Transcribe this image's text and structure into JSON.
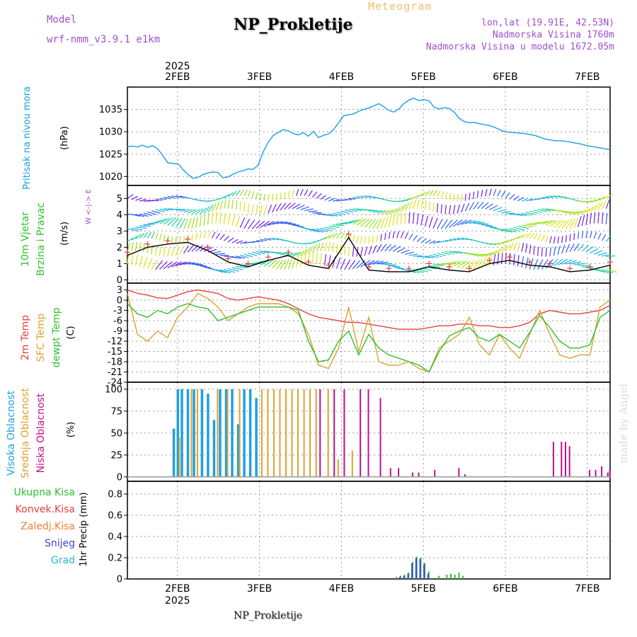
{
  "header": {
    "title": "NP_Prokletije",
    "subtitle": "Meteogram",
    "model_label": "Model",
    "model_value": "wrf-nmm_v3.9.1 e1km",
    "coords": "lon,lat (19.91E, 42.53N)",
    "altitude": "Nadmorska Visina 1760m",
    "model_altitude": "Nadmorska Visina u modelu 1672.05m"
  },
  "footer": {
    "station": "NP_Prokletije",
    "credit": "made by Angel"
  },
  "colors": {
    "pressure": "#1aa0e0",
    "temp": "#e84040",
    "sfc": "#e0a030",
    "dew": "#30c030",
    "high_cloud": "#20a0e0",
    "mid_cloud": "#e0a030",
    "low_cloud": "#c0108a",
    "total_rain": "#30c030",
    "conv_rain": "#e84040",
    "ice_rain": "#f08030",
    "snow": "#4040e0",
    "hail": "#20c0c0"
  },
  "chart_data": [
    {
      "type": "line",
      "panel": "pressure",
      "x_ticks": [
        "2FEB",
        "3FEB",
        "4FEB",
        "5FEB",
        "6FEB",
        "7FEB"
      ],
      "year": "2025",
      "label": "Pritisak na nivou mora",
      "unit": "(hPa)",
      "yticks": [
        1020,
        1025,
        1030,
        1035
      ],
      "ylim": [
        1018,
        1040
      ],
      "x": [
        0,
        0.25,
        0.5,
        0.75,
        1.0,
        1.25,
        1.5,
        1.75,
        2.0,
        2.25,
        2.5,
        2.6,
        2.75,
        3.0,
        3.25,
        3.5,
        3.75,
        4.0,
        4.25,
        4.5,
        4.75,
        5.0,
        5.25,
        5.5,
        5.75,
        6.0,
        6.25,
        6.5,
        6.75,
        7.0,
        7.25,
        7.5,
        7.75,
        8.0,
        8.25,
        8.5,
        8.75,
        9.0,
        9.25,
        9.5,
        9.75,
        10.0,
        10.25,
        10.5,
        10.75,
        11.0,
        11.25,
        11.5,
        11.75,
        12.0,
        12.25,
        12.5,
        12.75,
        13.0,
        13.25,
        13.5,
        13.75,
        14.0,
        14.25,
        14.5,
        14.75,
        15.0,
        15.25,
        15.5,
        15.75,
        16.0,
        16.25,
        16.5,
        16.75,
        17.0,
        17.25,
        17.5,
        17.75,
        18.0,
        18.25,
        18.5,
        18.75,
        19.0,
        19.25,
        19.5,
        19.75,
        20.0,
        20.25,
        20.5,
        20.75,
        21.0,
        21.25,
        21.5,
        21.75,
        22.0,
        22.25,
        22.5,
        22.75,
        23.0,
        23.25,
        23.5,
        23.75,
        24.0
      ],
      "values": [
        1026.7,
        1026.8,
        1026.6,
        1027.0,
        1026.5,
        1026.9,
        1026.2,
        1024.8,
        1023.1,
        1022.9,
        1022.8,
        1022.5,
        1021.6,
        1020.5,
        1019.6,
        1019.8,
        1020.4,
        1020.8,
        1021.0,
        1020.9,
        1019.7,
        1019.9,
        1020.5,
        1021.0,
        1021.3,
        1021.7,
        1021.6,
        1022.5,
        1025.5,
        1027.6,
        1029.2,
        1029.8,
        1030.5,
        1030.2,
        1029.6,
        1029.3,
        1029.8,
        1029.0,
        1030.1,
        1028.7,
        1029.2,
        1029.5,
        1030.5,
        1032.0,
        1033.6,
        1033.8,
        1034.0,
        1034.6,
        1035.0,
        1035.3,
        1035.8,
        1036.3,
        1035.6,
        1034.8,
        1034.4,
        1035.1,
        1036.3,
        1037.1,
        1037.5,
        1037.0,
        1037.2,
        1036.9,
        1035.5,
        1035.1,
        1035.4,
        1035.2,
        1034.4,
        1033.0,
        1032.3,
        1032.0,
        1032.1,
        1031.8,
        1031.6,
        1031.4,
        1031.0,
        1030.5,
        1030.0,
        1029.9,
        1029.8,
        1029.7,
        1029.6,
        1029.4,
        1029.2,
        1028.8,
        1028.4,
        1028.2,
        1028.0,
        1028.0,
        1027.9,
        1027.7,
        1027.5,
        1027.3,
        1027.0,
        1026.8,
        1026.6,
        1026.4,
        1026.2,
        1026.0
      ]
    },
    {
      "type": "line",
      "panel": "wind",
      "label1": "10m Vjetar",
      "label2": "Brzina i Pravac",
      "unit": "(m/s)",
      "compass": "W <-|-> E",
      "yticks": [
        0,
        1,
        2,
        3,
        4,
        5
      ],
      "ylim": [
        -0.2,
        5.8
      ],
      "x": [
        0,
        1,
        2,
        3,
        4,
        5,
        6,
        7,
        8,
        9,
        10,
        11,
        12,
        13,
        14,
        15,
        16,
        17,
        18,
        19,
        20,
        21,
        22,
        23,
        24
      ],
      "values": [
        1.5,
        2.0,
        2.2,
        2.3,
        1.8,
        1.1,
        0.8,
        1.2,
        1.5,
        0.9,
        0.7,
        2.6,
        0.6,
        0.5,
        0.5,
        0.8,
        0.6,
        0.5,
        1.0,
        1.2,
        0.9,
        0.8,
        0.5,
        0.6,
        0.9
      ]
    },
    {
      "type": "line",
      "panel": "temperature",
      "labels": [
        "2m Temp",
        "SFC Temp",
        "dewpt Temp"
      ],
      "unit": "(C)",
      "yticks": [
        3,
        0,
        -3,
        -6,
        -9,
        -12,
        -15,
        -18,
        -21,
        -24
      ],
      "ylim": [
        -24,
        5
      ],
      "x": [
        0,
        0.5,
        1,
        1.5,
        2,
        2.5,
        3,
        3.5,
        4,
        4.5,
        5,
        5.5,
        6,
        6.5,
        7,
        7.5,
        8,
        8.5,
        9,
        9.5,
        10,
        10.5,
        11,
        11.5,
        12,
        12.5,
        13,
        13.5,
        14,
        14.5,
        15,
        15.5,
        16,
        16.5,
        17,
        17.5,
        18,
        18.5,
        19,
        19.5,
        20,
        20.5,
        21,
        21.5,
        22,
        22.5,
        23,
        23.5,
        24
      ],
      "series": [
        {
          "name": "2m Temp",
          "values": [
            3.0,
            2.0,
            1.5,
            0.7,
            0.5,
            1.5,
            2.5,
            3.0,
            2.5,
            2.0,
            0.5,
            0.0,
            0.5,
            1.0,
            0.5,
            0.0,
            -1.0,
            -2.5,
            -4.0,
            -5.0,
            -5.5,
            -6.0,
            -6.5,
            -6.5,
            -7.0,
            -7.5,
            -8.0,
            -8.5,
            -8.5,
            -8.5,
            -8.0,
            -7.5,
            -7.5,
            -7.0,
            -7.0,
            -7.5,
            -7.5,
            -8.0,
            -8.0,
            -7.5,
            -6.5,
            -4.0,
            -3.0,
            -3.5,
            -4.0,
            -4.0,
            -3.5,
            -3.0,
            -1.5
          ]
        },
        {
          "name": "SFC Temp",
          "values": [
            2.0,
            -10.0,
            -12.0,
            -9.0,
            -11.0,
            -5.0,
            -2.0,
            2.0,
            0.5,
            -2.0,
            -6.0,
            -4.0,
            -2.0,
            -1.0,
            -1.0,
            -1.0,
            -2.0,
            -4.0,
            -10.0,
            -19.0,
            -20.0,
            -14.0,
            -2.0,
            -15.0,
            -5.0,
            -18.0,
            -19.0,
            -19.0,
            -18.0,
            -20.0,
            -21.0,
            -14.0,
            -12.0,
            -10.0,
            -5.0,
            -13.0,
            -16.0,
            -10.0,
            -14.0,
            -17.0,
            -10.0,
            -3.0,
            -10.0,
            -16.0,
            -17.0,
            -16.0,
            -16.0,
            -2.0,
            0.0
          ]
        },
        {
          "name": "dewpt Temp",
          "values": [
            -1.0,
            -4.0,
            -5.0,
            -3.0,
            -4.0,
            -2.0,
            -1.0,
            -2.0,
            -2.5,
            -6.0,
            -5.0,
            -4.0,
            -3.0,
            -2.0,
            -2.0,
            -2.0,
            -2.0,
            -3.0,
            -12.0,
            -18.0,
            -17.5,
            -12.0,
            -9.0,
            -16.0,
            -10.0,
            -14.0,
            -16.0,
            -17.0,
            -18.0,
            -19.0,
            -21.0,
            -15.0,
            -10.5,
            -9.0,
            -8.0,
            -11.0,
            -12.0,
            -10.0,
            -12.0,
            -14.0,
            -9.5,
            -4.5,
            -8.0,
            -12.0,
            -14.0,
            -14.0,
            -13.0,
            -5.0,
            -3.0
          ]
        }
      ]
    },
    {
      "type": "bar",
      "panel": "clouds",
      "labels": [
        "Visoka Oblacnost",
        "Srednja Oblacnost",
        "Niska Oblacnost"
      ],
      "unit": "(%)",
      "yticks": [
        0,
        25,
        50,
        75,
        100
      ],
      "ylim": [
        -5,
        108
      ],
      "series": [
        {
          "name": "Visoka Oblacnost",
          "x": [
            2.3,
            2.5,
            2.7,
            3.0,
            3.3,
            3.7,
            4.0,
            4.3,
            4.6,
            4.9,
            5.2,
            5.5,
            5.8,
            6.1,
            6.4
          ],
          "values": [
            55,
            100,
            100,
            100,
            100,
            100,
            95,
            65,
            100,
            100,
            100,
            60,
            100,
            100,
            90
          ]
        },
        {
          "name": "Srednja Oblacnost",
          "x": [
            2.6,
            3.2,
            3.5,
            4.5,
            5.0,
            5.6,
            6.7,
            7.0,
            7.3,
            7.6,
            7.9,
            8.2,
            8.5,
            8.8,
            9.1,
            9.4,
            10.0,
            10.5,
            11.2
          ],
          "values": [
            45,
            100,
            100,
            100,
            100,
            100,
            100,
            100,
            100,
            100,
            100,
            100,
            100,
            100,
            100,
            100,
            100,
            20,
            30
          ]
        },
        {
          "name": "Niska Oblacnost",
          "x": [
            9.6,
            10.3,
            10.8,
            11.6,
            12.0,
            12.6,
            13.1,
            13.5,
            14.2,
            14.5,
            15.3,
            16.5,
            16.8,
            21.2,
            21.6,
            21.8,
            22.0,
            23.0,
            23.3,
            23.6,
            23.9,
            24.0
          ],
          "values": [
            100,
            100,
            100,
            100,
            100,
            90,
            10,
            10,
            5,
            5,
            8,
            10,
            3,
            40,
            40,
            40,
            35,
            8,
            8,
            12,
            5,
            8
          ]
        }
      ]
    },
    {
      "type": "bar",
      "panel": "precipitation",
      "labels": [
        "Ukupna Kisa",
        "Konvek.Kisa",
        "Zaledj.Kisa",
        "Snijeg",
        "Grad"
      ],
      "unit": "1hr Precip (mm)",
      "yticks": [
        0,
        0.2,
        0.4,
        0.6,
        0.8
      ],
      "ylim": [
        0,
        0.92
      ],
      "series": [
        {
          "name": "Ukupna Kisa",
          "x": [
            13.4,
            13.6,
            13.8,
            14.0,
            14.2,
            14.4,
            14.6,
            14.8,
            15.0,
            15.5,
            15.9,
            16.1,
            16.3,
            16.5,
            16.7
          ],
          "values": [
            0.02,
            0.03,
            0.04,
            0.06,
            0.16,
            0.21,
            0.2,
            0.15,
            0.07,
            0.03,
            0.04,
            0.05,
            0.04,
            0.06,
            0.03
          ]
        },
        {
          "name": "Snijeg",
          "x": [
            13.5,
            13.7,
            13.9,
            14.1,
            14.3,
            14.5,
            14.7,
            14.9
          ],
          "values": [
            0.02,
            0.03,
            0.05,
            0.15,
            0.2,
            0.19,
            0.14,
            0.05
          ]
        }
      ]
    }
  ]
}
